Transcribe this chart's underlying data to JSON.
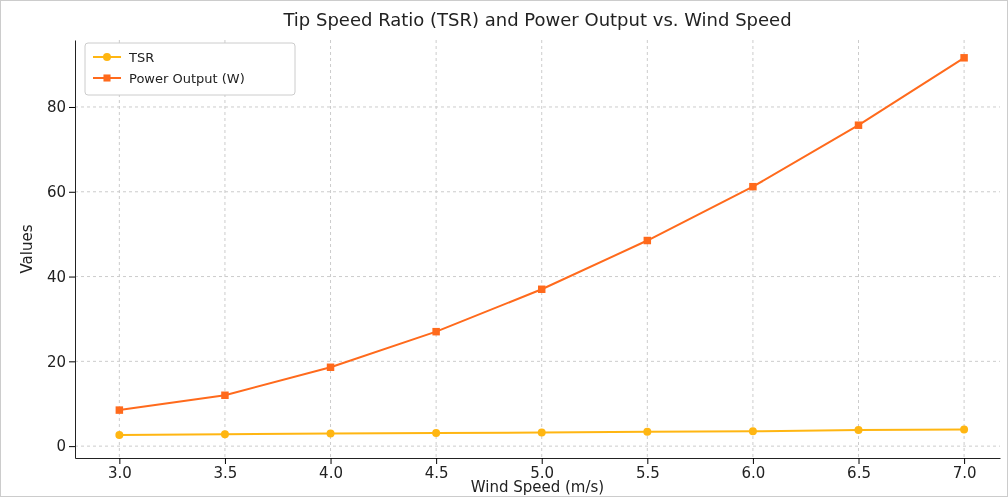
{
  "chart_data": {
    "type": "line",
    "title": "Tip Speed Ratio (TSR) and Power Output vs. Wind Speed",
    "xlabel": "Wind Speed (m/s)",
    "ylabel": "Values",
    "x": [
      3.0,
      3.5,
      4.0,
      4.5,
      5.0,
      5.5,
      6.0,
      6.5,
      7.0
    ],
    "series": [
      {
        "name": "TSR",
        "color": "#ffb612",
        "marker": "circle",
        "values": [
          2.6,
          2.8,
          3.0,
          3.1,
          3.2,
          3.4,
          3.5,
          3.8,
          3.9
        ]
      },
      {
        "name": "Power Output (W)",
        "color": "#ff6a1c",
        "marker": "square",
        "values": [
          8.5,
          12.0,
          18.6,
          27.0,
          37.0,
          48.5,
          61.2,
          75.7,
          91.6
        ]
      }
    ],
    "xlim": [
      2.79,
      7.17
    ],
    "ylim": [
      -2.8,
      95.8
    ],
    "xticks": [
      {
        "value": 3,
        "label": "3.0"
      },
      {
        "value": 3.5,
        "label": "3.5"
      },
      {
        "value": 4,
        "label": "4.0"
      },
      {
        "value": 4.5,
        "label": "4.5"
      },
      {
        "value": 5,
        "label": "5.0"
      },
      {
        "value": 5.5,
        "label": "5.5"
      },
      {
        "value": 6,
        "label": "6.0"
      },
      {
        "value": 6.5,
        "label": "6.5"
      },
      {
        "value": 7,
        "label": "7.0"
      }
    ],
    "yticks": [
      0,
      20,
      40,
      60,
      80
    ],
    "grid": true,
    "legend": "top left",
    "line_style": "solid"
  }
}
